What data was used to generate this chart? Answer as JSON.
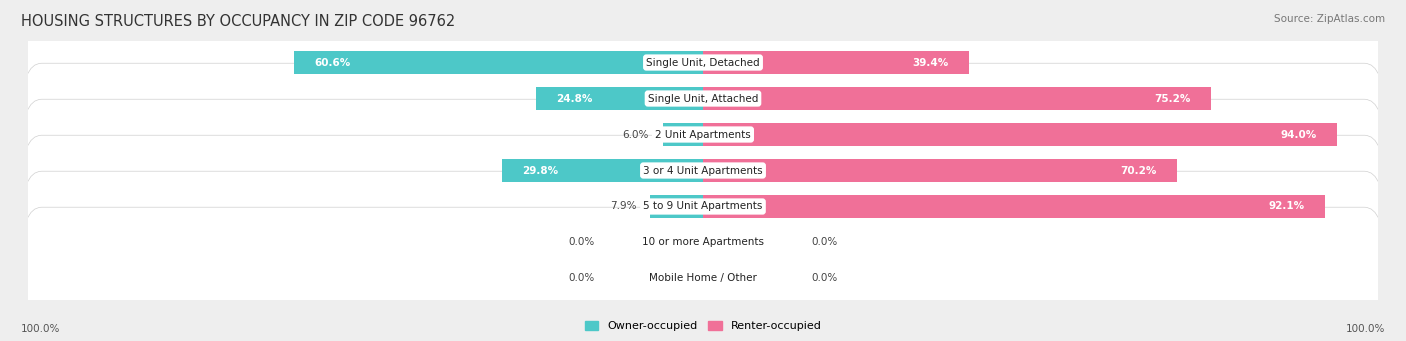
{
  "title": "HOUSING STRUCTURES BY OCCUPANCY IN ZIP CODE 96762",
  "source": "Source: ZipAtlas.com",
  "categories": [
    "Single Unit, Detached",
    "Single Unit, Attached",
    "2 Unit Apartments",
    "3 or 4 Unit Apartments",
    "5 to 9 Unit Apartments",
    "10 or more Apartments",
    "Mobile Home / Other"
  ],
  "owner_pct": [
    60.6,
    24.8,
    6.0,
    29.8,
    7.9,
    0.0,
    0.0
  ],
  "renter_pct": [
    39.4,
    75.2,
    94.0,
    70.2,
    92.1,
    0.0,
    0.0
  ],
  "owner_color": "#4dc8c8",
  "renter_color": "#f07098",
  "bg_color": "#eeeeee",
  "title_fontsize": 10.5,
  "source_fontsize": 7.5,
  "label_fontsize": 7.5,
  "cat_fontsize": 7.5,
  "legend_fontsize": 8,
  "axis_label_fontsize": 7.5
}
